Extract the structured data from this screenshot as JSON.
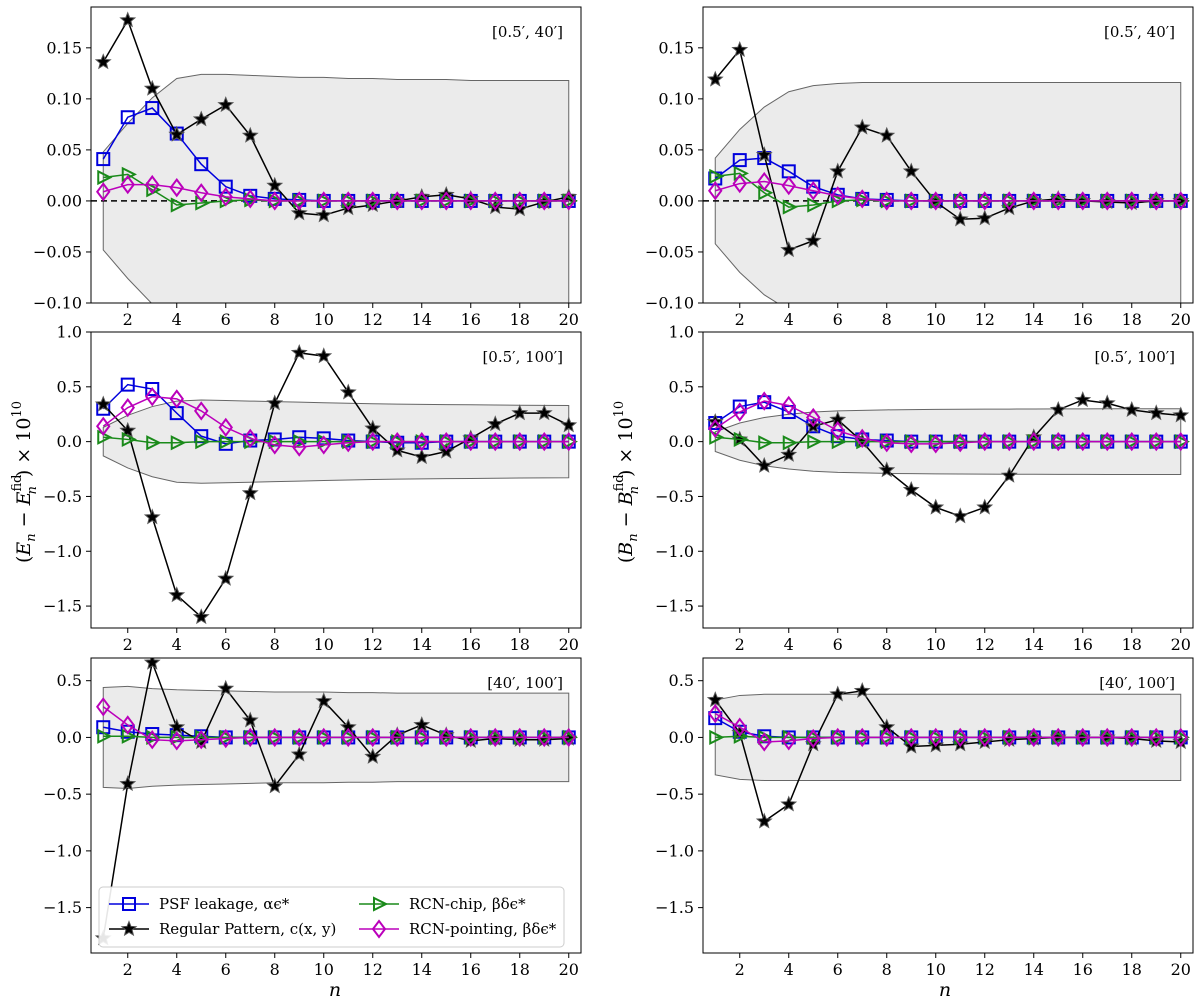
{
  "chart_data": {
    "type": "line",
    "x": [
      1,
      2,
      3,
      4,
      5,
      6,
      7,
      8,
      9,
      10,
      11,
      12,
      13,
      14,
      15,
      16,
      17,
      18,
      19,
      20
    ],
    "xlabel": "n",
    "ylabel_left": "(E_n − E_n^fid) × 10^10",
    "ylabel_right": "(B_n − B_n^fid) × 10^10",
    "series_styles": [
      {
        "key": "psf",
        "name": "PSF leakage, αϵ*",
        "color": "#0000dd",
        "marker": "square"
      },
      {
        "key": "rp",
        "name": "Regular Pattern, c(x, y)",
        "color": "#000000",
        "marker": "star"
      },
      {
        "key": "chip",
        "name": "RCN-chip, βδϵ*",
        "color": "#1a8a1a",
        "marker": "triangle-right"
      },
      {
        "key": "point",
        "name": "RCN-pointing, βδϵ*",
        "color": "#bb00bb",
        "marker": "diamond"
      }
    ],
    "band_color": "#ebebeb",
    "panels": [
      {
        "id": "E-0.5-40",
        "row": 0,
        "col": 0,
        "range_label": "[0.5′, 40′]",
        "ylim": [
          -0.1,
          0.19
        ],
        "yticks": [
          -0.1,
          -0.05,
          0.0,
          0.05,
          0.1,
          0.15
        ],
        "yticklabels": [
          "−0.10",
          "−0.05",
          "0.00",
          "0.05",
          "0.10",
          "0.15"
        ],
        "show_xlabel": false,
        "zero_line": true,
        "band": [
          0.048,
          0.076,
          0.101,
          0.12,
          0.124,
          0.124,
          0.123,
          0.122,
          0.121,
          0.121,
          0.12,
          0.12,
          0.119,
          0.119,
          0.119,
          0.118,
          0.118,
          0.118,
          0.118,
          0.118
        ],
        "series": {
          "psf": [
            0.041,
            0.082,
            0.091,
            0.066,
            0.036,
            0.014,
            0.005,
            0.002,
            0.001,
            0.0,
            0.0,
            0.0,
            0.0,
            0.0,
            0.0,
            0.0,
            0.0,
            0.0,
            0.0,
            0.0
          ],
          "rp": [
            0.136,
            0.177,
            0.11,
            0.065,
            0.08,
            0.094,
            0.064,
            0.015,
            -0.012,
            -0.014,
            -0.007,
            -0.004,
            0.0,
            0.004,
            0.006,
            0.002,
            -0.006,
            -0.008,
            -0.001,
            0.004
          ],
          "chip": [
            0.023,
            0.026,
            0.011,
            -0.004,
            -0.002,
            0.0,
            0.001,
            0.0,
            0.0,
            0.0,
            0.0,
            0.0,
            0.0,
            0.0,
            0.0,
            0.0,
            0.0,
            0.0,
            0.0,
            0.0
          ],
          "point": [
            0.009,
            0.016,
            0.016,
            0.013,
            0.008,
            0.004,
            0.002,
            0.0,
            0.0,
            0.0,
            0.0,
            0.0,
            0.0,
            0.0,
            0.0,
            0.0,
            0.0,
            0.0,
            0.0,
            0.0
          ]
        }
      },
      {
        "id": "B-0.5-40",
        "row": 0,
        "col": 1,
        "range_label": "[0.5′, 40′]",
        "ylim": [
          -0.1,
          0.19
        ],
        "yticks": [
          -0.1,
          -0.05,
          0.0,
          0.05,
          0.1,
          0.15
        ],
        "yticklabels": [
          "−0.10",
          "−0.05",
          "0.00",
          "0.05",
          "0.10",
          "0.15"
        ],
        "show_xlabel": false,
        "zero_line": true,
        "band": [
          0.042,
          0.07,
          0.092,
          0.107,
          0.113,
          0.115,
          0.116,
          0.116,
          0.116,
          0.116,
          0.116,
          0.116,
          0.116,
          0.116,
          0.116,
          0.116,
          0.116,
          0.116,
          0.116,
          0.116
        ],
        "series": {
          "psf": [
            0.022,
            0.04,
            0.042,
            0.029,
            0.014,
            0.006,
            0.002,
            0.001,
            0.0,
            0.0,
            0.0,
            0.0,
            0.0,
            0.0,
            0.0,
            0.0,
            0.0,
            0.0,
            0.0,
            0.0
          ],
          "rp": [
            0.119,
            0.148,
            0.045,
            -0.048,
            -0.039,
            0.029,
            0.072,
            0.064,
            0.029,
            -0.001,
            -0.018,
            -0.017,
            -0.007,
            0.0,
            0.002,
            0.0,
            -0.001,
            -0.002,
            0.0,
            0.0
          ],
          "chip": [
            0.024,
            0.027,
            0.008,
            -0.006,
            -0.004,
            0.0,
            0.001,
            0.0,
            0.0,
            0.0,
            0.0,
            0.0,
            0.0,
            0.0,
            0.0,
            0.0,
            0.0,
            0.0,
            0.0,
            0.0
          ],
          "point": [
            0.01,
            0.017,
            0.019,
            0.015,
            0.01,
            0.005,
            0.002,
            0.0,
            0.0,
            0.0,
            0.0,
            0.0,
            0.0,
            0.0,
            0.0,
            0.0,
            0.0,
            0.0,
            0.0,
            0.0
          ]
        }
      },
      {
        "id": "E-0.5-100",
        "row": 1,
        "col": 0,
        "range_label": "[0.5′, 100′]",
        "ylim": [
          -1.7,
          1.0
        ],
        "yticks": [
          -1.5,
          -1.0,
          -0.5,
          0.0,
          0.5,
          1.0
        ],
        "yticklabels": [
          "−1.5",
          "−1.0",
          "−0.5",
          "0.0",
          "0.5",
          "1.0"
        ],
        "show_xlabel": false,
        "zero_line": false,
        "band": [
          0.13,
          0.24,
          0.32,
          0.37,
          0.38,
          0.375,
          0.37,
          0.365,
          0.36,
          0.355,
          0.35,
          0.345,
          0.342,
          0.34,
          0.338,
          0.336,
          0.334,
          0.332,
          0.331,
          0.33
        ],
        "series": {
          "psf": [
            0.3,
            0.52,
            0.48,
            0.26,
            0.05,
            -0.02,
            0.01,
            0.02,
            0.04,
            0.03,
            0.01,
            0.0,
            -0.01,
            -0.01,
            0.0,
            0.0,
            0.0,
            0.0,
            0.0,
            0.0
          ],
          "rp": [
            0.34,
            0.1,
            -0.69,
            -1.4,
            -1.6,
            -1.25,
            -0.47,
            0.35,
            0.81,
            0.78,
            0.45,
            0.12,
            -0.08,
            -0.14,
            -0.09,
            0.03,
            0.16,
            0.26,
            0.26,
            0.15
          ],
          "chip": [
            0.04,
            0.02,
            -0.01,
            -0.01,
            0.0,
            0.0,
            0.0,
            0.0,
            0.0,
            0.0,
            0.0,
            0.0,
            0.0,
            0.0,
            0.0,
            0.0,
            0.0,
            0.0,
            0.0,
            0.0
          ],
          "point": [
            0.14,
            0.31,
            0.41,
            0.39,
            0.28,
            0.13,
            0.03,
            -0.03,
            -0.05,
            -0.03,
            -0.01,
            0.0,
            0.0,
            0.0,
            0.0,
            0.0,
            0.0,
            0.0,
            0.0,
            0.0
          ]
        }
      },
      {
        "id": "B-0.5-100",
        "row": 1,
        "col": 1,
        "range_label": "[0.5′, 100′]",
        "ylim": [
          -1.7,
          1.0
        ],
        "yticks": [
          -1.5,
          -1.0,
          -0.5,
          0.0,
          0.5,
          1.0
        ],
        "yticklabels": [
          "−1.5",
          "−1.0",
          "−0.5",
          "0.0",
          "0.5",
          "1.0"
        ],
        "show_xlabel": false,
        "zero_line": false,
        "band": [
          0.09,
          0.17,
          0.22,
          0.25,
          0.27,
          0.28,
          0.285,
          0.29,
          0.292,
          0.294,
          0.295,
          0.296,
          0.297,
          0.298,
          0.299,
          0.299,
          0.3,
          0.3,
          0.3,
          0.3
        ],
        "series": {
          "psf": [
            0.17,
            0.32,
            0.36,
            0.27,
            0.14,
            0.05,
            0.02,
            0.01,
            0.0,
            0.0,
            0.0,
            0.0,
            0.0,
            0.0,
            0.0,
            0.0,
            0.0,
            0.0,
            0.0,
            0.0
          ],
          "rp": [
            0.18,
            0.02,
            -0.22,
            -0.12,
            0.14,
            0.2,
            0.0,
            -0.26,
            -0.44,
            -0.6,
            -0.68,
            -0.6,
            -0.31,
            0.04,
            0.29,
            0.38,
            0.35,
            0.29,
            0.26,
            0.24
          ],
          "chip": [
            0.04,
            0.02,
            -0.01,
            -0.01,
            0.0,
            0.0,
            0.0,
            0.0,
            0.0,
            0.0,
            0.0,
            0.0,
            0.0,
            0.0,
            0.0,
            0.0,
            0.0,
            0.0,
            0.0,
            0.0
          ],
          "point": [
            0.12,
            0.27,
            0.37,
            0.33,
            0.22,
            0.1,
            0.03,
            -0.01,
            -0.02,
            -0.02,
            -0.01,
            0.0,
            0.0,
            0.0,
            0.0,
            0.0,
            0.0,
            0.0,
            0.0,
            0.0
          ]
        }
      },
      {
        "id": "E-40-100",
        "row": 2,
        "col": 0,
        "range_label": "[40′, 100′]",
        "ylim": [
          -1.9,
          0.7
        ],
        "yticks": [
          -1.5,
          -1.0,
          -0.5,
          0.0,
          0.5
        ],
        "yticklabels": [
          "−1.5",
          "−1.0",
          "−0.5",
          "0.0",
          "0.5"
        ],
        "show_xlabel": true,
        "zero_line": false,
        "band": [
          0.44,
          0.45,
          0.43,
          0.42,
          0.415,
          0.41,
          0.405,
          0.4,
          0.4,
          0.4,
          0.395,
          0.395,
          0.39,
          0.39,
          0.39,
          0.39,
          0.39,
          0.39,
          0.39,
          0.39
        ],
        "series": {
          "psf": [
            0.09,
            0.05,
            0.03,
            0.02,
            0.01,
            0.0,
            0.0,
            0.0,
            0.0,
            0.0,
            0.0,
            0.0,
            0.0,
            0.0,
            0.0,
            0.0,
            0.0,
            0.0,
            0.0,
            0.0
          ],
          "rp": [
            -1.77,
            -0.41,
            0.66,
            0.09,
            -0.04,
            0.43,
            0.15,
            -0.43,
            -0.15,
            0.32,
            0.09,
            -0.17,
            0.02,
            0.11,
            0.02,
            -0.03,
            -0.01,
            -0.02,
            -0.02,
            -0.01
          ],
          "chip": [
            0.01,
            0.01,
            0.0,
            0.0,
            0.0,
            0.0,
            0.0,
            0.0,
            0.0,
            0.0,
            0.0,
            0.0,
            0.0,
            0.0,
            0.0,
            0.0,
            0.0,
            0.0,
            0.0,
            0.0
          ],
          "point": [
            0.27,
            0.11,
            -0.02,
            -0.03,
            -0.02,
            -0.01,
            0.0,
            0.0,
            0.0,
            0.0,
            0.0,
            0.0,
            0.0,
            0.0,
            0.0,
            0.0,
            0.0,
            0.0,
            0.0,
            0.0
          ]
        }
      },
      {
        "id": "B-40-100",
        "row": 2,
        "col": 1,
        "range_label": "[40′, 100′]",
        "ylim": [
          -1.9,
          0.7
        ],
        "yticks": [
          -1.5,
          -1.0,
          -0.5,
          0.0,
          0.5
        ],
        "yticklabels": [
          "−1.5",
          "−1.0",
          "−0.5",
          "0.0",
          "0.5"
        ],
        "show_xlabel": true,
        "zero_line": false,
        "band": [
          0.33,
          0.37,
          0.38,
          0.38,
          0.38,
          0.38,
          0.38,
          0.38,
          0.38,
          0.38,
          0.38,
          0.38,
          0.38,
          0.38,
          0.38,
          0.38,
          0.38,
          0.38,
          0.38,
          0.38
        ],
        "series": {
          "psf": [
            0.17,
            0.05,
            0.01,
            0.0,
            0.0,
            0.0,
            0.0,
            0.0,
            0.0,
            0.0,
            0.0,
            0.0,
            0.0,
            0.0,
            0.0,
            0.0,
            0.0,
            0.0,
            0.0,
            0.0
          ],
          "rp": [
            0.33,
            0.04,
            -0.74,
            -0.59,
            -0.06,
            0.38,
            0.41,
            0.09,
            -0.08,
            -0.07,
            -0.06,
            -0.04,
            -0.02,
            -0.01,
            0.0,
            0.0,
            0.0,
            -0.01,
            -0.03,
            -0.04
          ],
          "chip": [
            0.0,
            0.01,
            0.0,
            0.0,
            0.0,
            0.0,
            0.0,
            0.0,
            0.0,
            0.0,
            0.0,
            0.0,
            0.0,
            0.0,
            0.0,
            0.0,
            0.0,
            0.0,
            0.0,
            0.0
          ],
          "point": [
            0.21,
            0.09,
            -0.04,
            -0.03,
            -0.01,
            0.0,
            0.0,
            0.0,
            0.0,
            0.0,
            0.0,
            0.0,
            0.0,
            0.0,
            0.0,
            0.0,
            0.0,
            0.0,
            0.0,
            0.0
          ]
        }
      }
    ],
    "xticks": [
      2,
      4,
      6,
      8,
      10,
      12,
      14,
      16,
      18,
      20
    ],
    "xlim": [
      0.5,
      20.5
    ],
    "legend": {
      "panel": "E-40-100",
      "placement": "lower-left",
      "ncol": 2
    }
  }
}
